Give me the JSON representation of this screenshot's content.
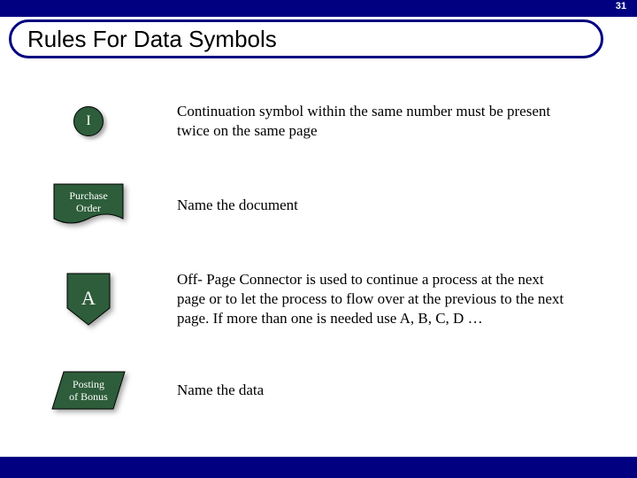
{
  "page_number": "31",
  "title": "Rules For Data Symbols",
  "colors": {
    "bar": "#000080",
    "shape_fill": "#2d5d3a",
    "shape_stroke": "#000000",
    "text_light": "#ffffff",
    "text_body": "#000000"
  },
  "rows": [
    {
      "symbol_type": "circle-connector",
      "symbol_text": "I",
      "description": "Continuation symbol within the same number must be present twice on the same page"
    },
    {
      "symbol_type": "document",
      "symbol_text": "Purchase\nOrder",
      "description": "Name the document"
    },
    {
      "symbol_type": "offpage-connector",
      "symbol_text": "A",
      "description": "Off- Page Connector is used to continue a process at the next page or to let the process to flow over at the previous to the next page. If more than one is needed use A, B, C, D …"
    },
    {
      "symbol_type": "data-parallelogram",
      "symbol_text": "Posting\nof Bonus",
      "description": "Name the data"
    }
  ]
}
